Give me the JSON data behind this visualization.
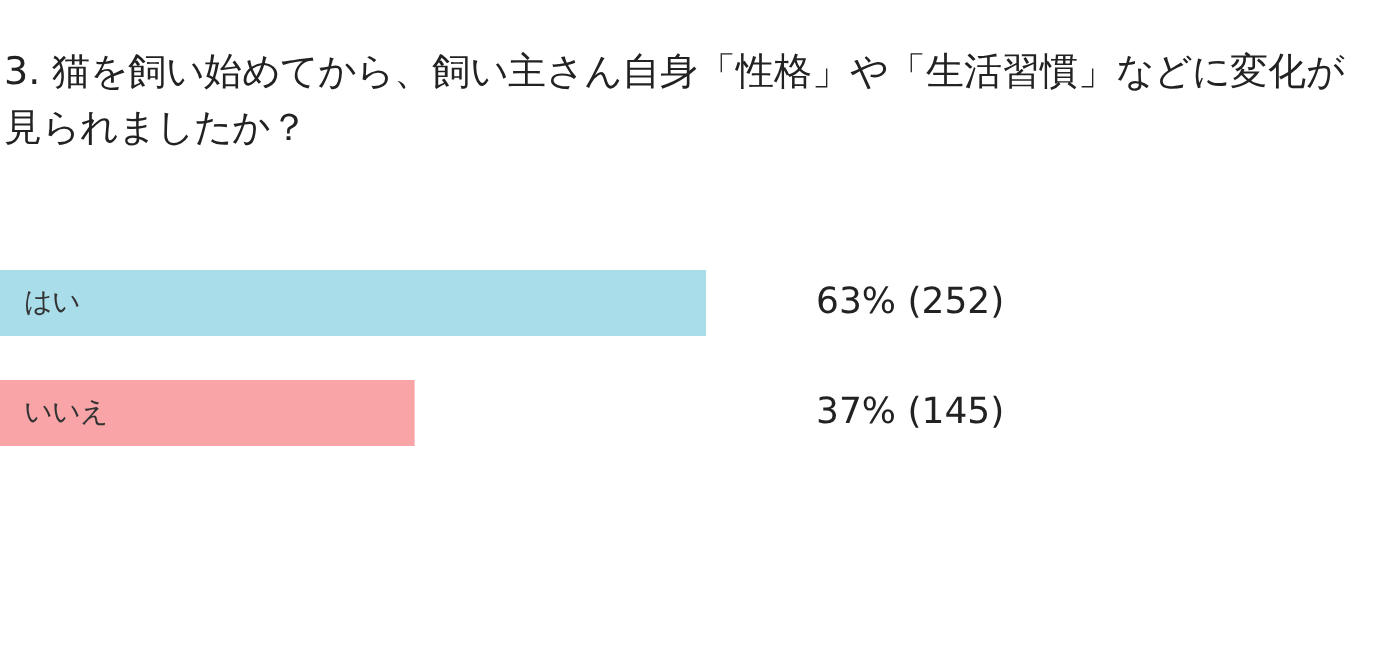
{
  "chart_data": {
    "type": "bar",
    "orientation": "horizontal",
    "title": "3. 猫を飼い始めてから、飼い主さん自身「性格」や「生活習慣」などに変化が見られましたか？",
    "categories": [
      "はい",
      "いいえ"
    ],
    "values": [
      63,
      37
    ],
    "colors": [
      "#a8dde9",
      "#f9a5a8"
    ],
    "value_labels": [
      "63% (252)",
      "37% (145)"
    ]
  }
}
